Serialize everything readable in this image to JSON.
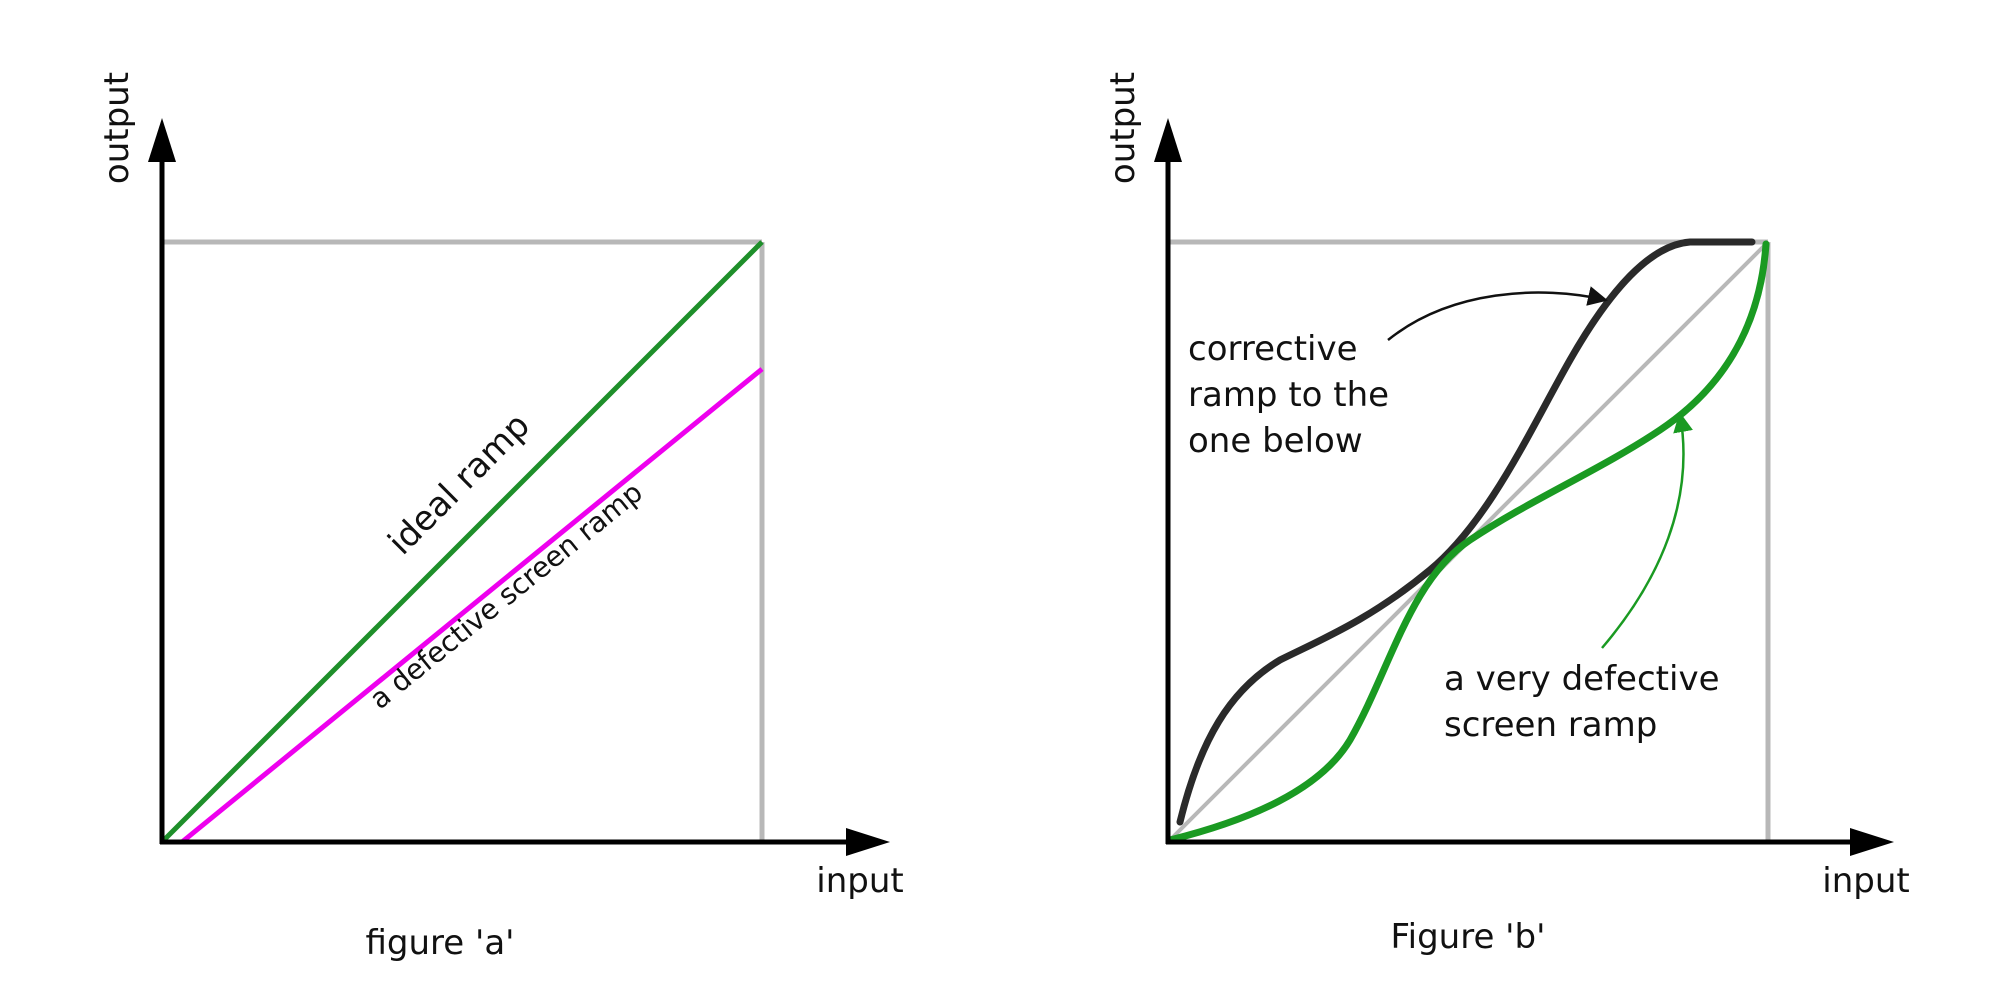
{
  "figure_a": {
    "caption": "figure 'a'",
    "y_axis_label": "output",
    "x_axis_label": "input",
    "curves": [
      {
        "label": "ideal ramp",
        "color": "#1e8f2a"
      },
      {
        "label": "a defective screen ramp",
        "color": "#ee00ee"
      }
    ]
  },
  "figure_b": {
    "caption": "Figure 'b'",
    "y_axis_label": "output",
    "x_axis_label": "input",
    "corrective_label": [
      "corrective",
      "ramp to the",
      "one below"
    ],
    "defective_label": [
      "a very defective",
      "screen ramp"
    ],
    "colors": {
      "corrective": "#2a2a2a",
      "defective": "#1a9a22",
      "reference": "#b8b8b8"
    }
  },
  "colors": {
    "axis": "#000000",
    "frame": "#b8b8b8"
  }
}
